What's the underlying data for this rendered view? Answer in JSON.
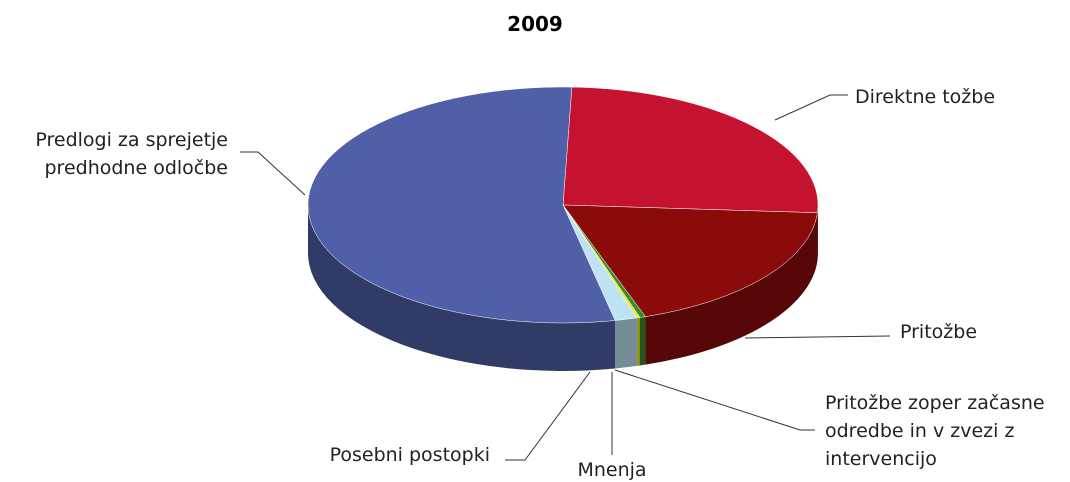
{
  "chart_data": {
    "type": "pie3d",
    "title": "2009",
    "categories": [
      "Direktne tožbe",
      "Pritožbe",
      "Pritožbe zoper začasne odredbe in v zvezi z intervencijo",
      "Mnenja",
      "Posebni postopki",
      "Predlogi za sprejetje predhodne odločbe"
    ],
    "values": [
      143,
      105,
      2,
      1,
      8,
      302
    ],
    "colors": [
      "#c41230",
      "#8b0a0a",
      "#3a8a2c",
      "#e8e800",
      "#bfe3f5",
      "#4f5fa8"
    ]
  }
}
